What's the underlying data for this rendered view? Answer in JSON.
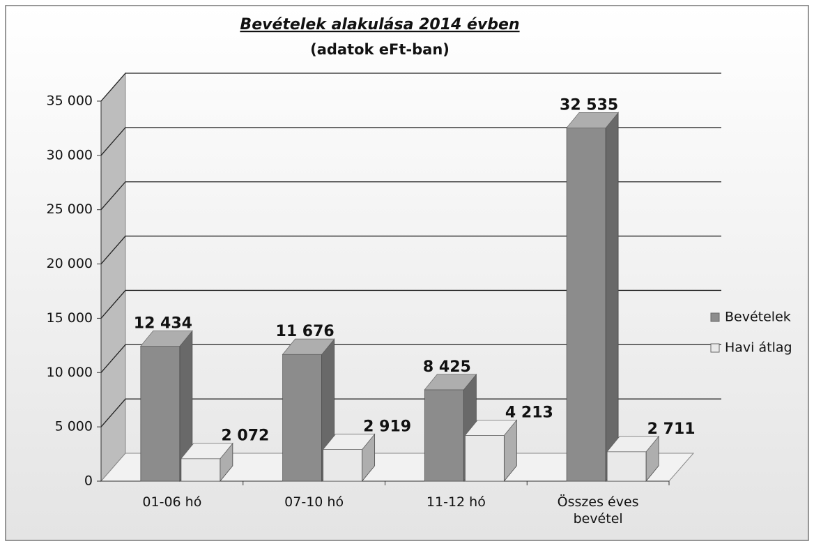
{
  "chart_data": {
    "type": "bar3d",
    "title": "Bevételek alakulása 2014 évben",
    "subtitle": "(adatok eFt-ban)",
    "categories": [
      "01-06 hó",
      "07-10 hó",
      "11-12 hó",
      "Összes éves bevétel"
    ],
    "series": [
      {
        "name": "Bevételek",
        "color": "#8c8c8c",
        "values": [
          12434,
          11676,
          8425,
          32535
        ],
        "value_labels": [
          "12 434",
          "11 676",
          "8 425",
          "32 535"
        ]
      },
      {
        "name": "Havi átlag",
        "color": "#e9e9e9",
        "values": [
          2072,
          2919,
          4213,
          2711
        ],
        "value_labels": [
          "2 072",
          "2 919",
          "4 213",
          "2 711"
        ]
      }
    ],
    "ylim": [
      0,
      35000
    ],
    "yticks": [
      0,
      {
        "value": 5000,
        "label": "5 000"
      },
      {
        "value": 10000,
        "label": "10 000"
      },
      {
        "value": 15000,
        "label": "15 000"
      },
      {
        "value": 20000,
        "label": "20 000"
      },
      {
        "value": 25000,
        "label": "25 000"
      },
      {
        "value": 30000,
        "label": "30 000"
      },
      {
        "value": 35000,
        "label": "35 000"
      }
    ],
    "grid": true,
    "legend": "right"
  }
}
